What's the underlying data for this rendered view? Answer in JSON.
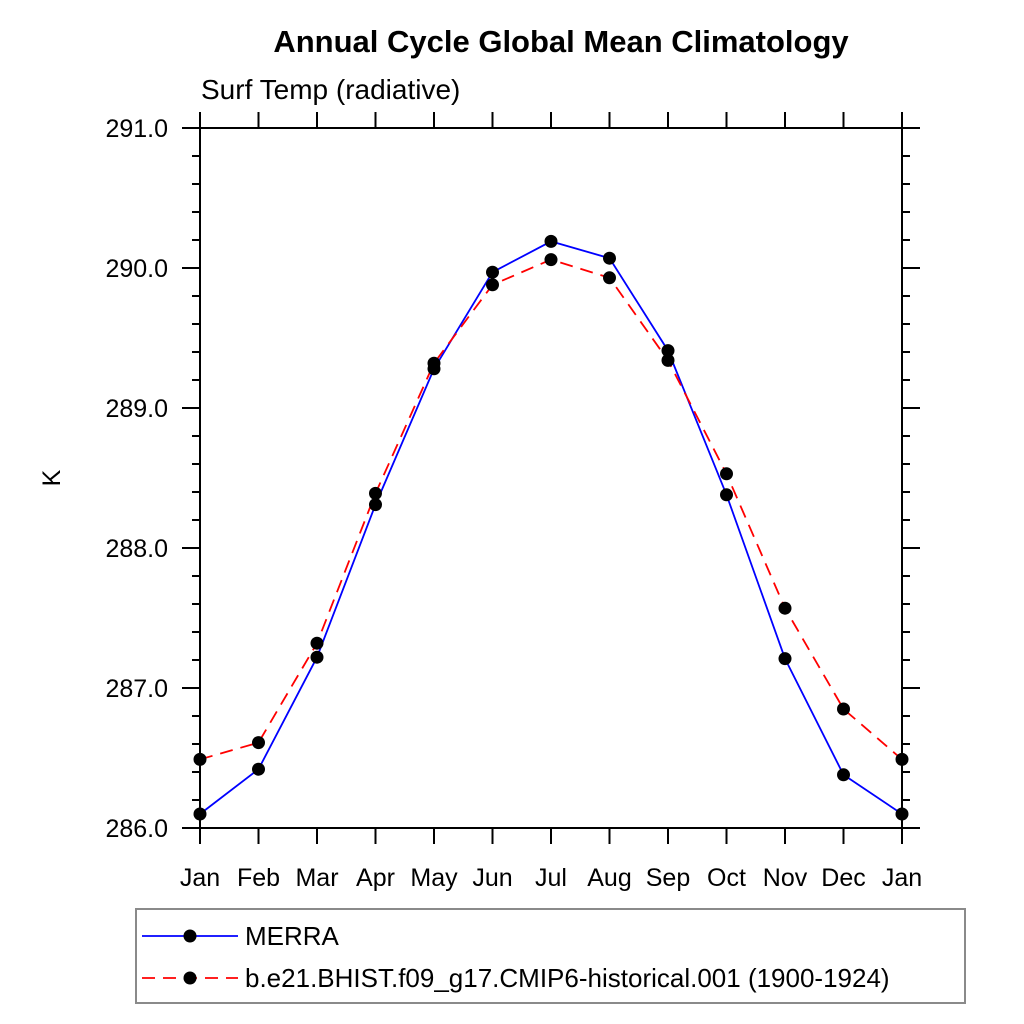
{
  "chart_data": {
    "type": "line",
    "title": "Annual Cycle Global Mean Climatology",
    "subtitle": "Surf Temp (radiative)",
    "ylabel": "K",
    "xlabel": "",
    "categories": [
      "Jan",
      "Feb",
      "Mar",
      "Apr",
      "May",
      "Jun",
      "Jul",
      "Aug",
      "Sep",
      "Oct",
      "Nov",
      "Dec",
      "Jan"
    ],
    "ylim": [
      286.0,
      291.0
    ],
    "ytick_major_step": 1.0,
    "ytick_minor_step": 0.2,
    "ytick_decimals": 1,
    "grid": false,
    "tick_direction": "outward",
    "legend_position": "bottom-left-box",
    "series": [
      {
        "name": "MERRA",
        "color": "#0000ff",
        "line_style": "solid",
        "marker": "filled-circle",
        "marker_color": "#000000",
        "values": [
          286.1,
          286.42,
          287.22,
          288.31,
          289.28,
          289.97,
          290.19,
          290.07,
          289.41,
          288.38,
          287.21,
          286.38,
          286.1
        ]
      },
      {
        "name": "b.e21.BHIST.f09_g17.CMIP6-historical.001 (1900-1924)",
        "color": "#ff0000",
        "line_style": "dashed",
        "marker": "filled-circle",
        "marker_color": "#000000",
        "values": [
          286.49,
          286.61,
          287.32,
          288.39,
          289.32,
          289.88,
          290.06,
          289.93,
          289.34,
          288.53,
          287.57,
          286.85,
          286.49
        ]
      }
    ]
  }
}
